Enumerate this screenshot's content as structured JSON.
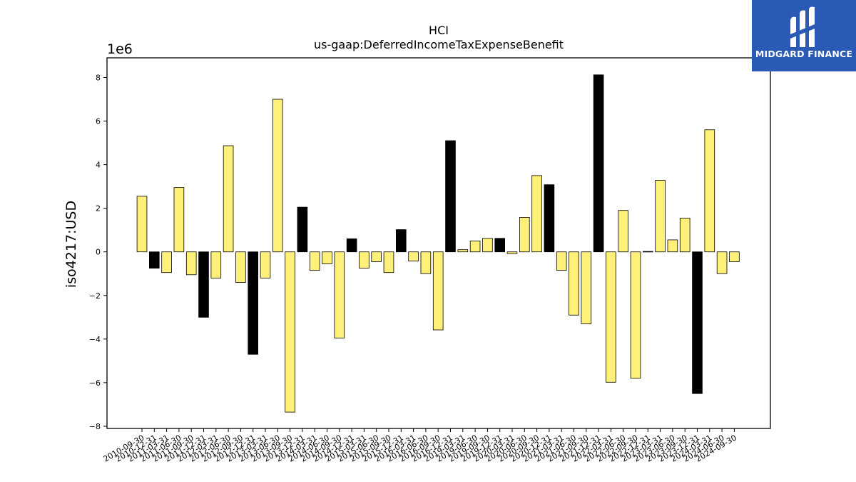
{
  "brand": {
    "name": "MIDGARD FINANCE",
    "color": "#2a5ab5",
    "icon": "midgard-m-logo-icon"
  },
  "chart_data": {
    "type": "bar",
    "title": "HCI",
    "subtitle": "us-gaap:DeferredIncomeTaxExpenseBenefit",
    "ylabel": "iso4217:USD",
    "xlabel": "",
    "scale_label": "1e6",
    "ylim": [
      -8.1,
      8.9
    ],
    "yticks": [
      -8,
      -6,
      -4,
      -2,
      0,
      2,
      4,
      6,
      8
    ],
    "grid": false,
    "colors": {
      "default": "#fff07a",
      "highlight": "#000000",
      "edge": "#000000"
    },
    "categories": [
      "2010-09-30",
      "2010-12-31",
      "2011-03-31",
      "2011-06-30",
      "2011-09-30",
      "2011-12-31",
      "2012-03-31",
      "2012-06-30",
      "2012-09-30",
      "2012-12-31",
      "2013-03-31",
      "2013-06-30",
      "2013-09-30",
      "2013-12-31",
      "2014-03-31",
      "2014-06-30",
      "2014-09-30",
      "2014-12-31",
      "2015-03-31",
      "2015-06-30",
      "2015-09-30",
      "2015-12-31",
      "2016-03-31",
      "2016-06-30",
      "2016-09-30",
      "2016-12-31",
      "2019-03-31",
      "2019-06-30",
      "2019-09-30",
      "2019-12-31",
      "2020-03-31",
      "2020-06-30",
      "2020-09-30",
      "2020-12-31",
      "2021-03-31",
      "2021-06-30",
      "2021-09-30",
      "2021-12-31",
      "2022-03-31",
      "2022-06-30",
      "2022-09-30",
      "2022-12-31",
      "2023-03-31",
      "2023-06-30",
      "2023-09-30",
      "2023-12-31",
      "2024-03-31",
      "2024-06-30",
      "2024-09-30"
    ],
    "values": [
      2.55,
      -0.75,
      -0.95,
      2.95,
      -1.05,
      -3.0,
      -1.2,
      4.87,
      -1.4,
      -4.7,
      -1.2,
      7.0,
      -7.35,
      2.05,
      -0.85,
      -0.55,
      -3.95,
      0.6,
      -0.75,
      -0.45,
      -0.95,
      1.02,
      -0.42,
      -1.0,
      -3.58,
      5.1,
      0.1,
      0.5,
      0.62,
      0.62,
      -0.08,
      1.58,
      3.5,
      3.08,
      -0.85,
      -2.9,
      -3.3,
      8.12,
      -5.98,
      1.9,
      -5.8,
      0.02,
      3.28,
      0.55,
      1.55,
      -6.5,
      5.6,
      -1.0,
      -0.45
    ],
    "highlight": [
      false,
      true,
      false,
      false,
      false,
      true,
      false,
      false,
      false,
      true,
      false,
      false,
      false,
      true,
      false,
      false,
      false,
      true,
      false,
      false,
      false,
      true,
      false,
      false,
      false,
      true,
      false,
      false,
      false,
      true,
      false,
      false,
      false,
      true,
      false,
      false,
      false,
      true,
      false,
      false,
      false,
      true,
      false,
      false,
      false,
      true,
      false,
      false,
      false
    ]
  }
}
